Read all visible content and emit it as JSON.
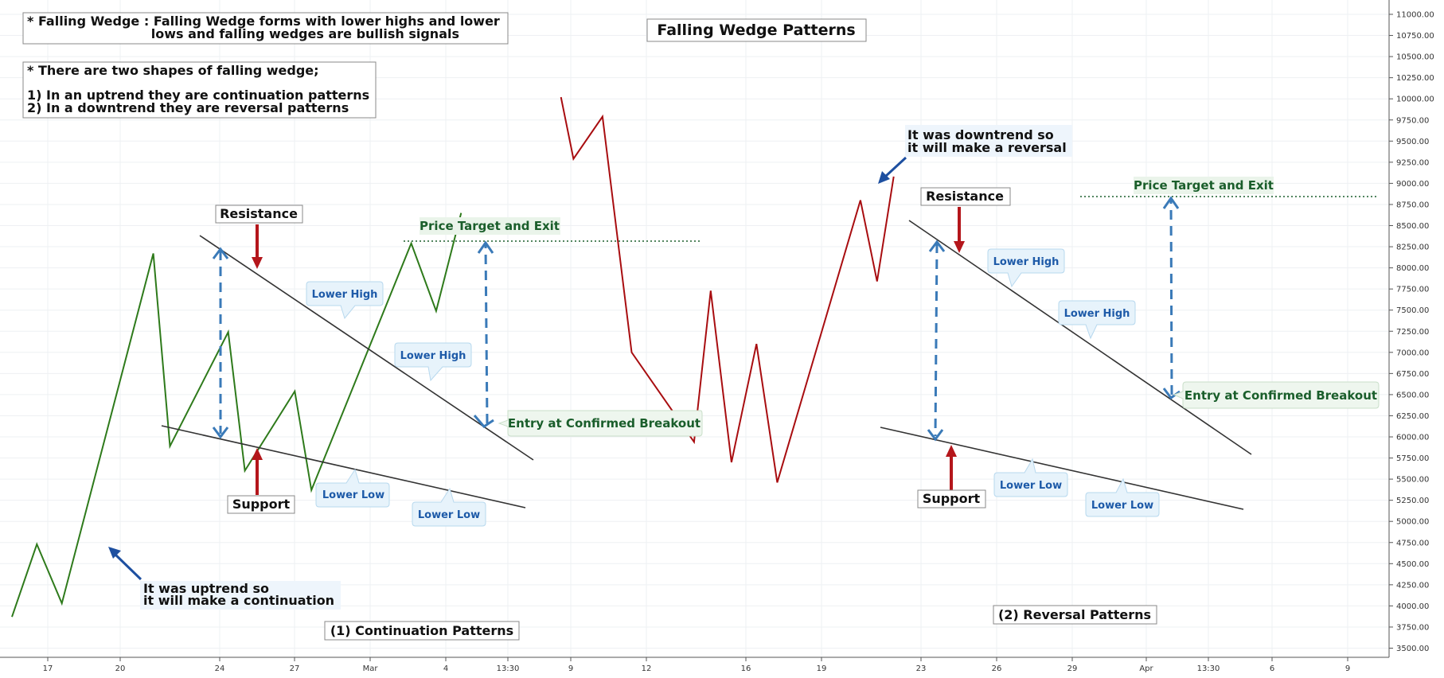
{
  "chart_data": {
    "type": "line",
    "title": "Falling Wedge Patterns",
    "ylim": [
      3375,
      11125
    ],
    "y_ticks": [
      "11000.00",
      "10750.00",
      "10500.00",
      "10250.00",
      "10000.00",
      "9750.00",
      "9500.00",
      "9250.00",
      "9000.00",
      "8750.00",
      "8500.00",
      "8250.00",
      "8000.00",
      "7750.00",
      "7500.00",
      "7250.00",
      "7000.00",
      "6750.00",
      "6500.00",
      "6250.00",
      "6000.00",
      "5750.00",
      "5500.00",
      "5250.00",
      "5000.00",
      "4750.00",
      "4500.00",
      "4250.00",
      "4000.00",
      "3750.00",
      "3500.00"
    ],
    "x_ticks": [
      "17",
      "20",
      "24",
      "27",
      "Mar",
      "4",
      "13:30",
      "9",
      "12",
      "16",
      "19",
      "23",
      "26",
      "29",
      "Apr",
      "13:30",
      "6",
      "9"
    ],
    "grid": true,
    "series": [
      {
        "color": "#2e7a1b",
        "x": [
          0.0,
          3.0,
          6.0,
          17.0,
          19.0,
          26.0,
          28.0,
          34.0,
          36.0,
          48.0,
          51.0,
          54.0
        ],
        "y": [
          3870,
          4730,
          4030,
          8170,
          5890,
          7240,
          5600,
          6540,
          5370,
          8290,
          7490,
          8650
        ]
      },
      {
        "color": "#a80d10",
        "x": [
          66.0,
          67.5,
          71.0,
          74.5,
          82.0,
          84.0,
          86.5,
          89.5,
          92.0,
          102.0,
          104.0,
          106.0
        ],
        "y": [
          10020,
          9290,
          9790,
          7000,
          5940,
          7730,
          5700,
          7100,
          5460,
          8800,
          7840,
          9080
        ]
      }
    ],
    "annotations": {
      "info_line1": "* Falling Wedge : Falling Wedge forms with lower highs and lower",
      "info_line2": "lows and falling wedges are bullish signals",
      "shapes_line1": "* There are two shapes of falling wedge;",
      "shapes_line2": "1) In an uptrend they are continuation patterns",
      "shapes_line3": "2) In a downtrend they are reversal patterns",
      "resistance": "Resistance",
      "support": "Support",
      "lower_high": "Lower High",
      "lower_low": "Lower Low",
      "price_target": "Price Target and Exit",
      "entry": "Entry at Confirmed Breakout",
      "uptrend_line1": "It was uptrend so",
      "uptrend_line2": "it will make a continuation",
      "downtrend_line1": "It was downtrend so",
      "downtrend_line2": "it will make a reversal",
      "continuation": "(1) Continuation Patterns",
      "reversal": "(2) Reversal Patterns"
    }
  }
}
